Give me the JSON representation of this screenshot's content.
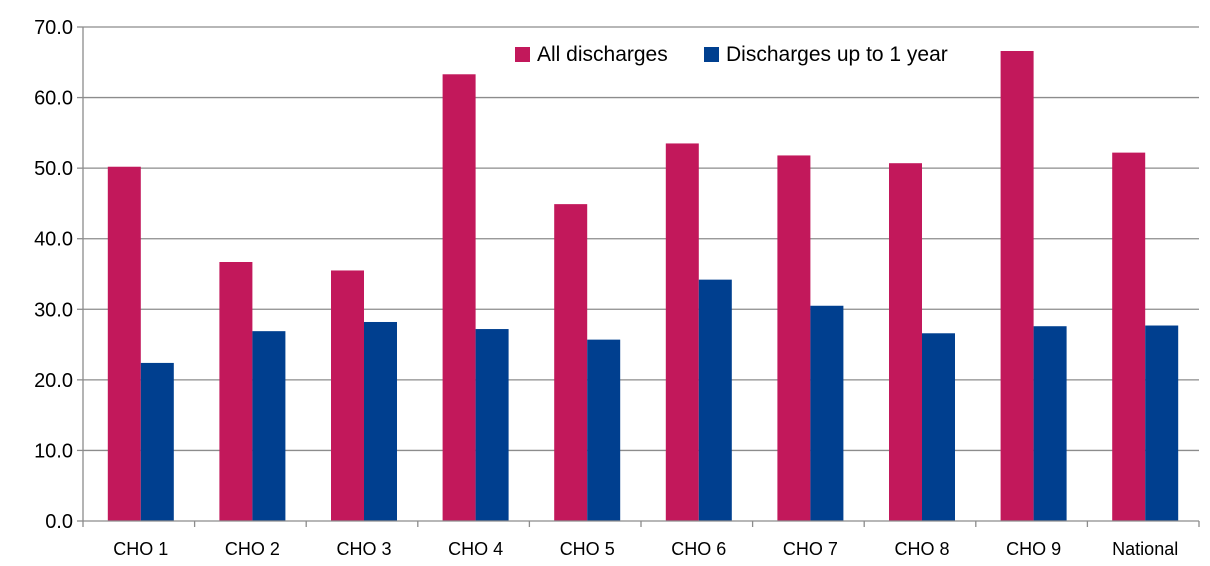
{
  "chart_data": {
    "type": "bar",
    "title": "",
    "xlabel": "",
    "ylabel": "",
    "ylim": [
      0,
      70
    ],
    "yticks": [
      "0.0",
      "10.0",
      "20.0",
      "30.0",
      "40.0",
      "50.0",
      "60.0",
      "70.0"
    ],
    "grid": true,
    "legend_position": "top-right",
    "categories": [
      "CHO 1",
      "CHO 2",
      "CHO 3",
      "CHO 4",
      "CHO 5",
      "CHO 6",
      "CHO 7",
      "CHO 8",
      "CHO 9",
      "National"
    ],
    "series": [
      {
        "name": "All discharges",
        "color": "#c2185b",
        "values": [
          50.2,
          36.7,
          35.5,
          63.3,
          44.9,
          53.5,
          51.8,
          50.7,
          66.6,
          52.2
        ]
      },
      {
        "name": "Discharges up to 1 year",
        "color": "#003f8f",
        "values": [
          22.4,
          26.9,
          28.2,
          27.2,
          25.7,
          34.2,
          30.5,
          26.6,
          27.6,
          27.7
        ]
      }
    ]
  }
}
